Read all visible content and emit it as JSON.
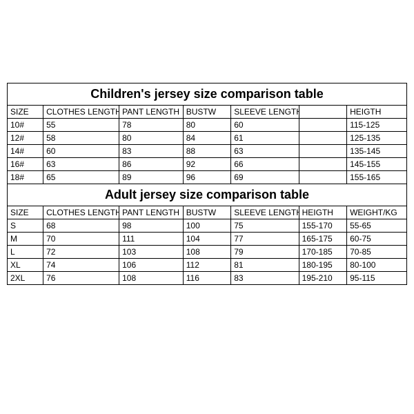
{
  "children": {
    "title": "Children's jersey size comparison table",
    "columns": [
      "SIZE",
      "CLOTHES LENGTH",
      "PANT LENGTH",
      "BUSTW",
      "SLEEVE LENGTH",
      "",
      "HEIGTH"
    ],
    "rows": [
      [
        "10#",
        "55",
        "78",
        "80",
        "60",
        "",
        "115-125"
      ],
      [
        "12#",
        "58",
        "80",
        "84",
        "61",
        "",
        "125-135"
      ],
      [
        "14#",
        "60",
        "83",
        "88",
        "63",
        "",
        "135-145"
      ],
      [
        "16#",
        "63",
        "86",
        "92",
        "66",
        "",
        "145-155"
      ],
      [
        "18#",
        "65",
        "89",
        "96",
        "69",
        "",
        "155-165"
      ]
    ]
  },
  "adult": {
    "title": "Adult jersey size comparison table",
    "columns": [
      "SIZE",
      "CLOTHES LENGTH",
      "PANT LENGTH",
      "BUSTW",
      "SLEEVE LENGTH",
      "HEIGTH",
      "WEIGHT/KG"
    ],
    "rows": [
      [
        "S",
        "68",
        "98",
        "100",
        "75",
        "155-170",
        "55-65"
      ],
      [
        "M",
        "70",
        "111",
        "104",
        "77",
        "165-175",
        "60-75"
      ],
      [
        "L",
        "72",
        "103",
        "108",
        "79",
        "170-185",
        "70-85"
      ],
      [
        "XL",
        "74",
        "106",
        "112",
        "81",
        "180-195",
        "80-100"
      ],
      [
        "2XL",
        "76",
        "108",
        "116",
        "83",
        "195-210",
        "95-115"
      ]
    ]
  },
  "style": {
    "border_color": "#000000",
    "background_color": "#ffffff",
    "title_fontsize": 18,
    "cell_fontsize": 12
  }
}
